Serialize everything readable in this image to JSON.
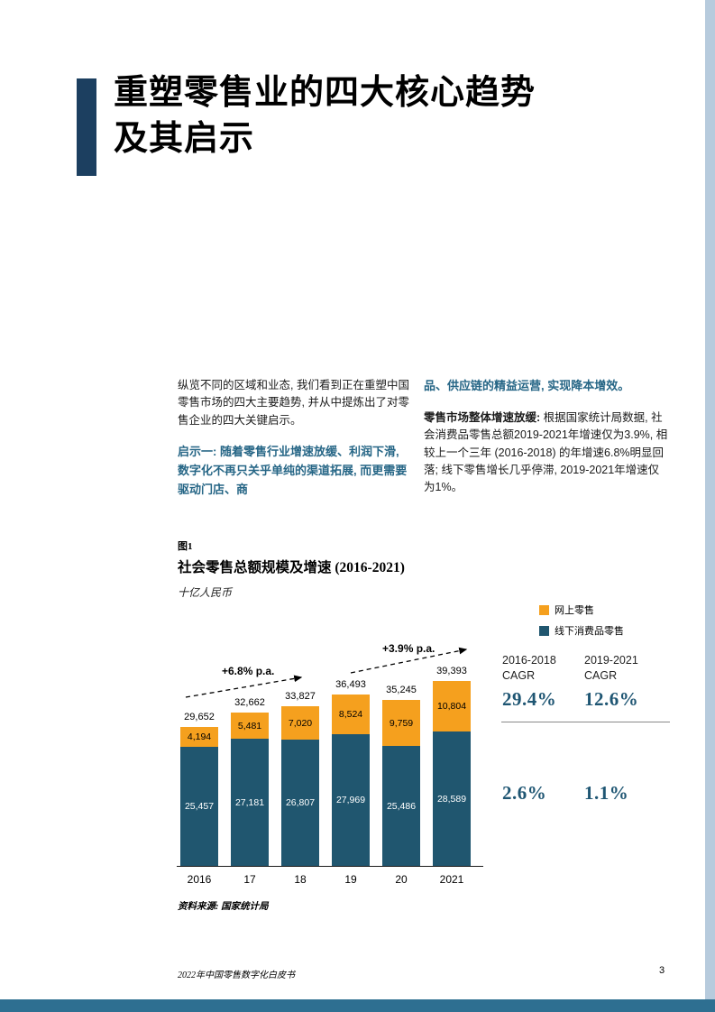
{
  "colors": {
    "title_accent": "#1c3f60",
    "bottom_bar": "#2e6f91",
    "right_strip": "#b7cbdd",
    "online_orange": "#f5a01e",
    "offline_blue": "#20566f",
    "insight_blue": "#266686",
    "cagr_blue": "#1f5673"
  },
  "title": {
    "line1": "重塑零售业的四大核心趋势",
    "line2": "及其启示"
  },
  "intro": {
    "col1_para1": "纵览不同的区域和业态, 我们看到正在重塑中国零售市场的四大主要趋势, 并从中提炼出了对零售企业的四大关键启示。",
    "col1_para2": "启示一: 随着零售行业增速放缓、利润下滑, 数字化不再只关乎单纯的渠道拓展, 而更需要驱动门店、商",
    "col2_para1": "品、供应链的精益运营, 实现降本增效。",
    "col2_para2_bold": "零售市场整体增速放缓:",
    "col2_para2_rest": " 根据国家统计局数据, 社会消费品零售总额2019-2021年增速仅为3.9%, 相较上一个三年 (2016-2018) 的年增速6.8%明显回落; 线下零售增长几乎停滞, 2019-2021年增速仅为1%。"
  },
  "figure": {
    "tag": "图1",
    "title": "社会零售总额规模及增速 (2016-2021)",
    "unit": "十亿人民币",
    "legend": [
      {
        "label": "网上零售",
        "color": "#f5a01e"
      },
      {
        "label": "线下消费品零售",
        "color": "#20566f"
      }
    ],
    "annotations": [
      {
        "label": "+6.8% p.a."
      },
      {
        "label": "+3.9% p.a."
      }
    ],
    "cagr": {
      "col1_line1": "2016-2018",
      "col1_line2": "CAGR",
      "col2_line1": "2019-2021",
      "col2_line2": "CAGR",
      "online_values": [
        "29.4%",
        "12.6%"
      ],
      "offline_values": [
        "2.6%",
        "1.1%"
      ]
    },
    "source": "资料来源: 国家统计局"
  },
  "chart_data": {
    "type": "bar",
    "stacked": true,
    "title": "社会零售总额规模及增速 (2016-2021)",
    "ylabel": "十亿人民币",
    "categories": [
      "2016",
      "17",
      "18",
      "19",
      "20",
      "2021"
    ],
    "series": [
      {
        "name": "线下消费品零售",
        "color": "#20566f",
        "values": [
          25457,
          27181,
          26807,
          27969,
          25486,
          28589
        ]
      },
      {
        "name": "网上零售",
        "color": "#f5a01e",
        "values": [
          4194,
          5481,
          7020,
          8524,
          9759,
          10804
        ]
      }
    ],
    "totals": [
      29652,
      32662,
      33827,
      36493,
      35245,
      39393
    ],
    "annotations": [
      "+6.8% p.a.",
      "+3.9% p.a."
    ],
    "legend_position": "top-right",
    "grid": false
  },
  "footer": {
    "left": "2022年中国零售数字化白皮书",
    "page": "3"
  }
}
